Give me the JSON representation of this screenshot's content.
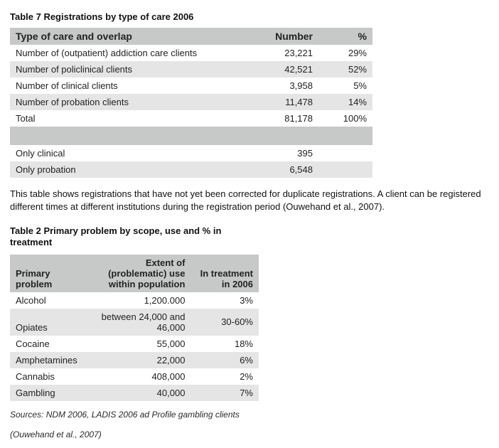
{
  "table7": {
    "title": "Table 7  Registrations by type of care 2006",
    "headers": {
      "c1": "Type of care and overlap",
      "c2": "Number",
      "c3": "%"
    },
    "rows": [
      {
        "label": "Number of (outpatient) addiction care clients",
        "number": "23,221",
        "pct": "29%"
      },
      {
        "label": "Number of policlinical clients",
        "number": "42,521",
        "pct": "52%"
      },
      {
        "label": "Number of clinical clients",
        "number": "3,958",
        "pct": "5%"
      },
      {
        "label": "Number of probation clients",
        "number": "11,478",
        "pct": "14%"
      },
      {
        "label": "Total",
        "number": "81,178",
        "pct": "100%"
      }
    ],
    "extra": [
      {
        "label": "Only clinical",
        "number": "395",
        "pct": ""
      },
      {
        "label": "Only probation",
        "number": "6,548",
        "pct": ""
      }
    ]
  },
  "caption": "This table shows registrations that have not yet been corrected for duplicate registrations. A client can be registered different times at different institutions during the registration period (Ouwehand et al., 2007).",
  "table2": {
    "title": "Table 2  Primary problem by scope, use and % in treatment",
    "headers": {
      "c1": "Primary problem",
      "c2": "Extent of (problematic) use within population",
      "c3": "In treatment in 2006"
    },
    "rows": [
      {
        "label": "Alcohol",
        "extent": "1,200.000",
        "pct": "3%"
      },
      {
        "label": "Opiates",
        "extent": "between 24,000 and 46,000",
        "pct": "30-60%"
      },
      {
        "label": "Cocaine",
        "extent": "55,000",
        "pct": "18%"
      },
      {
        "label": "Amphetamines",
        "extent": "22,000",
        "pct": "6%"
      },
      {
        "label": "Cannabis",
        "extent": "408,000",
        "pct": "2%"
      },
      {
        "label": "Gambling",
        "extent": "40,000",
        "pct": "7%"
      }
    ]
  },
  "sources": "Sources: NDM 2006, LADIS 2006 ad Profile gambling clients",
  "reference": "(Ouwehand et al., 2007)",
  "styling": {
    "header_bg": "#c7c9c8",
    "alt_bg": "#e4e5e4",
    "plain_bg": "#ffffff",
    "body_bg": "#ffffff",
    "text_color": "#222222",
    "font_family": "Gill Sans / humanist sans-serif",
    "title_fontsize_pt": 10,
    "body_fontsize_pt": 10
  }
}
